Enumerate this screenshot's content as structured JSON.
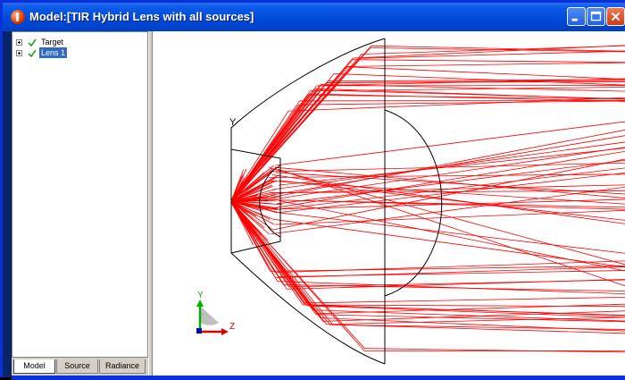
{
  "window": {
    "title": "Model:[TIR Hybrid Lens with all sources]",
    "controls": {
      "minimize": "minimize-icon",
      "maximize": "maximize-icon",
      "close": "close-icon"
    }
  },
  "tree": {
    "items": [
      {
        "label": "Target",
        "checked": true,
        "selected": false
      },
      {
        "label": "Lens 1",
        "checked": true,
        "selected": true
      }
    ]
  },
  "tabs": [
    {
      "label": "Model",
      "active": true
    },
    {
      "label": "Source",
      "active": false
    },
    {
      "label": "Radiance",
      "active": false
    }
  ],
  "viewport": {
    "vertex_label": "Y",
    "triad": {
      "y_label": "Y",
      "z_label": "Z"
    },
    "ray_color": "#ff0000",
    "outline_color": "#000000",
    "axis_colors": {
      "y": "#00b000",
      "z": "#e00000",
      "x": "#0000cc"
    }
  }
}
